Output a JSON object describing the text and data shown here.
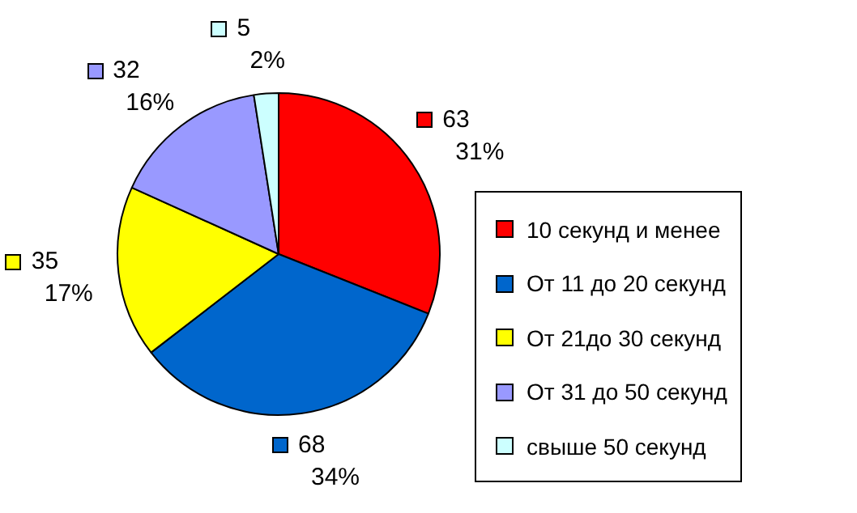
{
  "chart_data": {
    "type": "pie",
    "categories": [
      "10 секунд и менее",
      "От 11 до 20 секунд",
      "От 21до 30 секунд",
      "От 31 до 50 секунд",
      "свыше 50 секунд"
    ],
    "values": [
      63,
      68,
      35,
      32,
      5
    ],
    "colors": [
      "#ff0000",
      "#0066cc",
      "#ffff00",
      "#9999ff",
      "#ccffff"
    ],
    "value_labels": [
      "63\n31%",
      "68\n34%",
      "35\n17%",
      "32\n16%",
      "5\n2%"
    ],
    "legend": "right"
  }
}
